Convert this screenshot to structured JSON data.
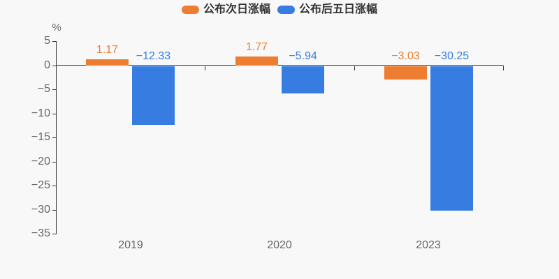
{
  "chart_data": {
    "type": "bar",
    "title": "",
    "categories": [
      "2019",
      "2020",
      "2023"
    ],
    "series": [
      {
        "id": "next-day-gain",
        "name": "公布次日涨幅",
        "color": "#ec7d31",
        "values": [
          1.17,
          1.77,
          -3.03
        ],
        "labels": [
          "1.17",
          "1.77",
          "−3.03"
        ]
      },
      {
        "id": "five-day-gain",
        "name": "公布后五日涨幅",
        "color": "#377de1",
        "values": [
          -12.33,
          -5.94,
          -30.25
        ],
        "labels": [
          "−12.33",
          "−5.94",
          "−30.25"
        ]
      }
    ],
    "xlabel": "",
    "ylabel": "%",
    "ylim": [
      -35,
      5
    ],
    "ytick_step": 5,
    "ytick_labels": [
      "5",
      "0",
      "−5",
      "−10",
      "−15",
      "−20",
      "−25",
      "−30",
      "−35"
    ],
    "grid": false,
    "legend_position": "top-center",
    "axis_line_color": "#333333",
    "axis_label_color": "#666666",
    "legend_text_color": "#333333",
    "background_color": "#f8f8f8"
  }
}
